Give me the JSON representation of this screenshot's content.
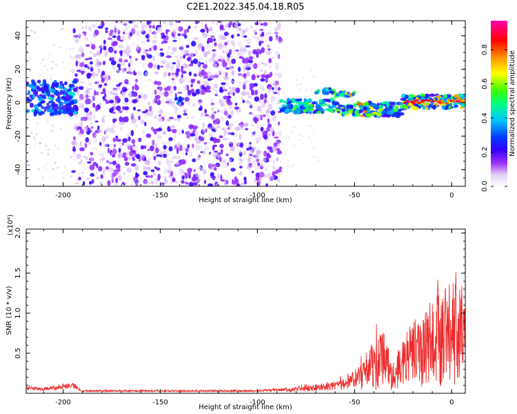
{
  "figure": {
    "title": "C2E1.2022.345.04.18.R05"
  },
  "chart_data": [
    {
      "type": "heatmap",
      "xlabel": "Height of straight line (km)",
      "ylabel": "Frequency (Hz)",
      "xlim": [
        -219,
        7
      ],
      "ylim": [
        -50,
        49
      ],
      "x_ticks": [
        -200,
        -150,
        -100,
        -50,
        0
      ],
      "y_ticks": [
        -40,
        -20,
        0,
        20,
        40
      ],
      "colorbar": {
        "label": "Normalized spectral amplitude",
        "range": [
          0,
          0.97
        ],
        "ticks": [
          0.0,
          0.2,
          0.4,
          0.6,
          0.8
        ],
        "colormap": [
          "#ffffff",
          "#e8d8f8",
          "#9b30ff",
          "#5500ee",
          "#0000ff",
          "#00c8ff",
          "#00ff80",
          "#80ff00",
          "#ffff00",
          "#ff8000",
          "#ff0000",
          "#ff00aa"
        ]
      },
      "regions": [
        {
          "name": "low-altitude band",
          "x_range": [
            -219,
            -193
          ],
          "freq_center_hz": 3,
          "freq_halfwidth_hz": 10,
          "peak_amplitude": 0.45
        },
        {
          "name": "broadband noise",
          "x_range": [
            -195,
            -88
          ],
          "freq_range_hz": [
            -50,
            49
          ],
          "peak_amplitude": 0.25
        },
        {
          "name": "isolated spot",
          "x_range": [
            -142,
            -138
          ],
          "freq_center_hz": 1,
          "peak_amplitude": 0.45
        },
        {
          "name": "signal track",
          "x_range": [
            -88,
            7
          ],
          "freq_center_hz": -2,
          "freq_halfwidth_hz": 4,
          "peak_amplitude": 0.95
        }
      ]
    },
    {
      "type": "line",
      "xlabel": "Height of straight line (km)",
      "ylabel": "SNR (10 * v/v)",
      "y_multiplier": "(x10⁴)",
      "xlim": [
        -219,
        7
      ],
      "ylim": [
        0,
        2.05
      ],
      "x_ticks": [
        -200,
        -150,
        -100,
        -50,
        0
      ],
      "y_ticks": [
        0.5,
        1.0,
        1.5,
        2.0
      ],
      "series": [
        {
          "color": "#ee2a2a",
          "x": [
            -219,
            -210,
            -200,
            -195,
            -190,
            -150,
            -100,
            -85,
            -75,
            -65,
            -55,
            -50,
            -45,
            -40,
            -35,
            -30,
            -25,
            -20,
            -15,
            -10,
            -5,
            0,
            3,
            7
          ],
          "y": [
            0.07,
            0.05,
            0.09,
            0.1,
            0.03,
            0.03,
            0.03,
            0.05,
            0.1,
            0.12,
            0.18,
            0.25,
            0.45,
            0.7,
            0.75,
            0.4,
            0.7,
            0.9,
            1.0,
            1.2,
            1.3,
            1.5,
            1.25,
            1.55
          ]
        }
      ]
    }
  ]
}
